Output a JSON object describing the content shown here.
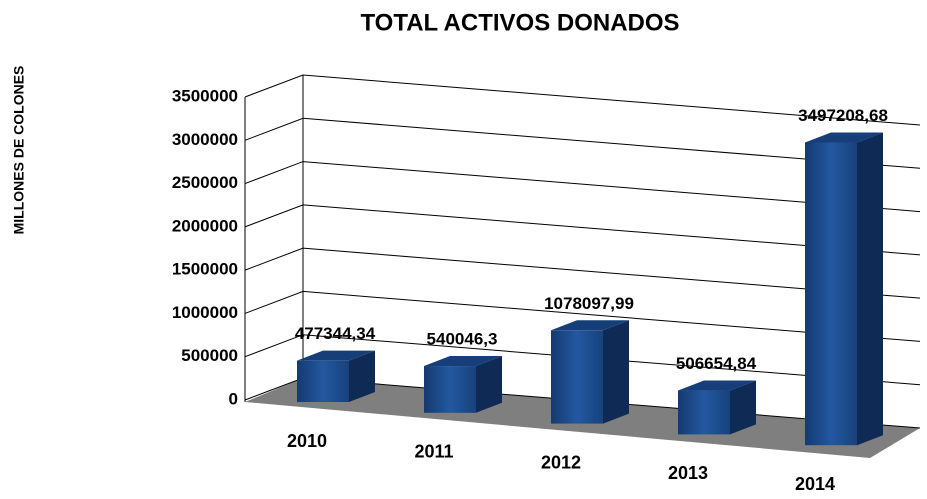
{
  "chart_data": {
    "type": "bar3d",
    "title": "TOTAL ACTIVOS DONADOS",
    "y_label": "MILLONES DE COLONES",
    "categories": [
      "2010",
      "2011",
      "2012",
      "2013",
      "2014"
    ],
    "values": [
      477344.34,
      540046.3,
      1078097.99,
      506654.84,
      3497208.68
    ],
    "value_labels": [
      "477344,34",
      "540046,3",
      "1078097,99",
      "506654,84",
      "3497208,68"
    ],
    "color": "#1f4e8c",
    "ylim": [
      0,
      3500000
    ],
    "yticks": [
      0,
      500000,
      1000000,
      1500000,
      2000000,
      2500000,
      3000000,
      3500000
    ],
    "grid": true
  }
}
